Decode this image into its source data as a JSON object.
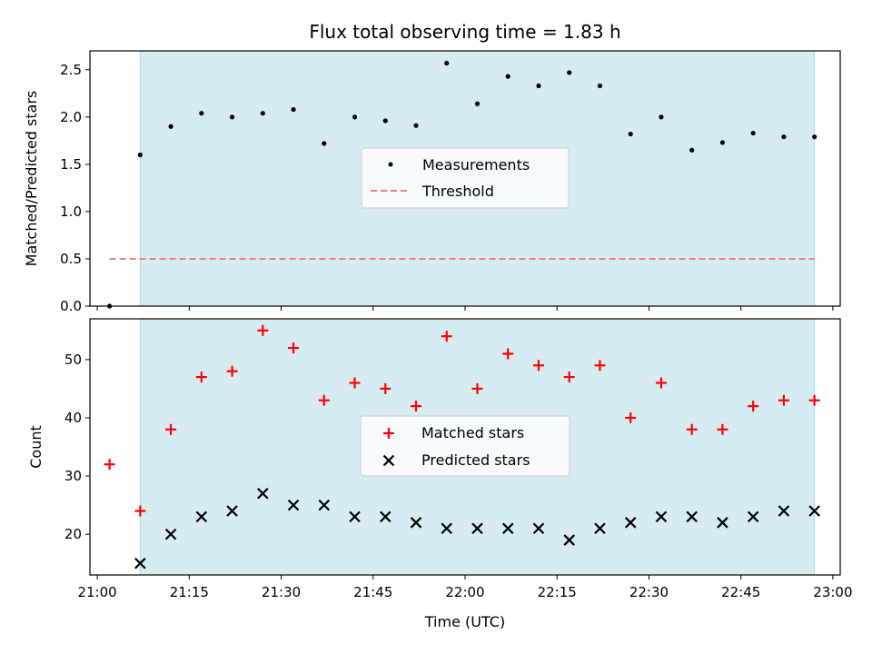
{
  "chart_data": [
    {
      "type": "scatter",
      "title": "Flux total observing time = 1.83 h",
      "xlabel": "",
      "ylabel": "Matched/Predicted stars",
      "ylim": [
        0,
        2.7
      ],
      "yticks": [
        "0.0",
        "0.5",
        "1.0",
        "1.5",
        "2.0",
        "2.5"
      ],
      "shaded_range": [
        "21:07",
        "22:57"
      ],
      "legend_position": "center",
      "series": [
        {
          "name": "Measurements",
          "marker": "dot",
          "color": "#000000",
          "x": [
            "21:02",
            "21:07",
            "21:12",
            "21:17",
            "21:22",
            "21:27",
            "21:32",
            "21:37",
            "21:42",
            "21:47",
            "21:52",
            "21:57",
            "22:02",
            "22:07",
            "22:12",
            "22:17",
            "22:22",
            "22:27",
            "22:32",
            "22:37",
            "22:42",
            "22:47",
            "22:52",
            "22:57"
          ],
          "values": [
            0.0,
            1.6,
            1.9,
            2.04,
            2.0,
            2.04,
            2.08,
            1.72,
            2.0,
            1.96,
            1.91,
            2.57,
            2.14,
            2.43,
            2.33,
            2.47,
            2.33,
            1.82,
            2.0,
            1.65,
            1.73,
            1.83,
            1.79,
            1.79
          ]
        },
        {
          "name": "Threshold",
          "style": "dashed",
          "color": "#f08080",
          "x": [
            "21:02",
            "22:57"
          ],
          "values": [
            0.5,
            0.5
          ]
        }
      ]
    },
    {
      "type": "scatter",
      "xlabel": "Time (UTC)",
      "ylabel": "Count",
      "ylim": [
        13,
        57
      ],
      "yticks": [
        "20",
        "30",
        "40",
        "50"
      ],
      "xticks": [
        "21:00",
        "21:15",
        "21:30",
        "21:45",
        "22:00",
        "22:15",
        "22:30",
        "22:45",
        "23:00"
      ],
      "shaded_range": [
        "21:07",
        "22:57"
      ],
      "legend_position": "center",
      "series": [
        {
          "name": "Matched stars",
          "marker": "plus",
          "color": "#ff0000",
          "x": [
            "21:02",
            "21:07",
            "21:12",
            "21:17",
            "21:22",
            "21:27",
            "21:32",
            "21:37",
            "21:42",
            "21:47",
            "21:52",
            "21:57",
            "22:02",
            "22:07",
            "22:12",
            "22:17",
            "22:22",
            "22:27",
            "22:32",
            "22:37",
            "22:42",
            "22:47",
            "22:52",
            "22:57"
          ],
          "values": [
            32,
            24,
            38,
            47,
            48,
            55,
            52,
            43,
            46,
            45,
            42,
            54,
            45,
            51,
            49,
            47,
            49,
            40,
            46,
            38,
            38,
            42,
            43,
            43
          ]
        },
        {
          "name": "Predicted stars",
          "marker": "x",
          "color": "#000000",
          "x": [
            "21:07",
            "21:12",
            "21:17",
            "21:22",
            "21:27",
            "21:32",
            "21:37",
            "21:42",
            "21:47",
            "21:52",
            "21:57",
            "22:02",
            "22:07",
            "22:12",
            "22:17",
            "22:22",
            "22:27",
            "22:32",
            "22:37",
            "22:42",
            "22:47",
            "22:52",
            "22:57"
          ],
          "values": [
            15,
            20,
            23,
            24,
            27,
            25,
            25,
            23,
            23,
            22,
            21,
            21,
            21,
            21,
            19,
            21,
            22,
            23,
            23,
            22,
            23,
            24,
            24
          ]
        }
      ]
    }
  ],
  "colors": {
    "shade": "#add8e6",
    "threshold": "#f08080",
    "matched": "#ff0000",
    "predicted": "#000000"
  }
}
